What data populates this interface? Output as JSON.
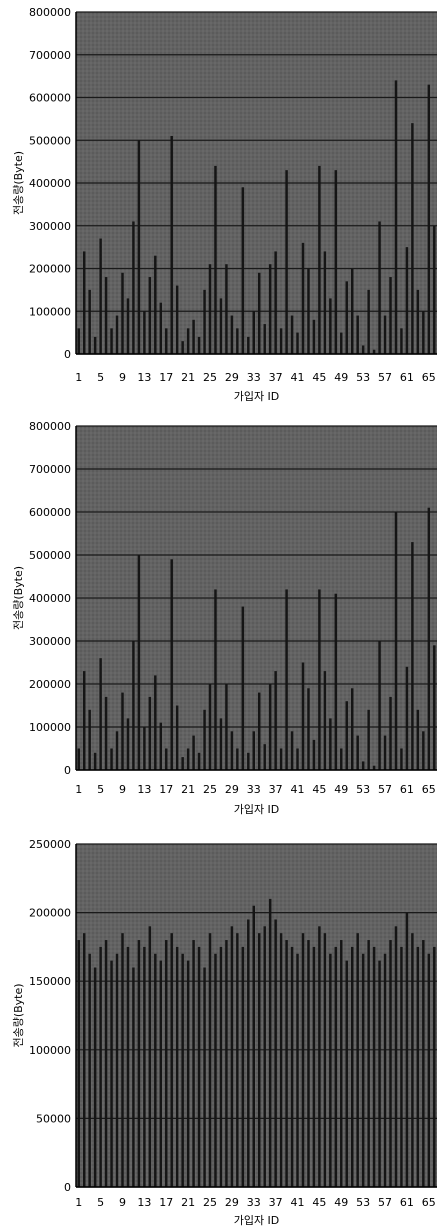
{
  "chart_data": [
    {
      "type": "bar",
      "title": "",
      "xlabel": "가입자 ID",
      "ylabel": "전송량(Byte)",
      "ylim": [
        0,
        800000
      ],
      "yticks": [
        0,
        100000,
        200000,
        300000,
        400000,
        500000,
        600000,
        700000,
        800000
      ],
      "xticks": [
        1,
        5,
        9,
        13,
        17,
        21,
        25,
        29,
        33,
        37,
        41,
        45,
        49,
        53,
        57,
        61,
        65
      ],
      "grid": true,
      "x": [
        1,
        2,
        3,
        4,
        5,
        6,
        7,
        8,
        9,
        10,
        11,
        12,
        13,
        14,
        15,
        16,
        17,
        18,
        19,
        20,
        21,
        22,
        23,
        24,
        25,
        26,
        27,
        28,
        29,
        30,
        31,
        32,
        33,
        34,
        35,
        36,
        37,
        38,
        39,
        40,
        41,
        42,
        43,
        44,
        45,
        46,
        47,
        48,
        49,
        50,
        51,
        52,
        53,
        54,
        55,
        56,
        57,
        58,
        59,
        60,
        61,
        62,
        63,
        64,
        65,
        66
      ],
      "values": [
        60000,
        240000,
        150000,
        40000,
        270000,
        180000,
        60000,
        90000,
        190000,
        130000,
        310000,
        500000,
        100000,
        180000,
        230000,
        120000,
        60000,
        510000,
        160000,
        30000,
        60000,
        80000,
        40000,
        150000,
        210000,
        440000,
        130000,
        210000,
        90000,
        60000,
        390000,
        40000,
        100000,
        190000,
        70000,
        210000,
        240000,
        60000,
        430000,
        90000,
        50000,
        260000,
        200000,
        80000,
        440000,
        240000,
        130000,
        430000,
        50000,
        170000,
        200000,
        90000,
        20000,
        150000,
        10000,
        310000,
        90000,
        180000,
        640000,
        60000,
        250000,
        540000,
        150000,
        100000,
        630000,
        300000
      ]
    },
    {
      "type": "bar",
      "title": "",
      "xlabel": "가입자 ID",
      "ylabel": "전송량(Byte)",
      "ylim": [
        0,
        800000
      ],
      "yticks": [
        0,
        100000,
        200000,
        300000,
        400000,
        500000,
        600000,
        700000,
        800000
      ],
      "xticks": [
        1,
        5,
        9,
        13,
        17,
        21,
        25,
        29,
        33,
        37,
        41,
        45,
        49,
        53,
        57,
        61,
        65
      ],
      "grid": true,
      "x": [
        1,
        2,
        3,
        4,
        5,
        6,
        7,
        8,
        9,
        10,
        11,
        12,
        13,
        14,
        15,
        16,
        17,
        18,
        19,
        20,
        21,
        22,
        23,
        24,
        25,
        26,
        27,
        28,
        29,
        30,
        31,
        32,
        33,
        34,
        35,
        36,
        37,
        38,
        39,
        40,
        41,
        42,
        43,
        44,
        45,
        46,
        47,
        48,
        49,
        50,
        51,
        52,
        53,
        54,
        55,
        56,
        57,
        58,
        59,
        60,
        61,
        62,
        63,
        64,
        65,
        66
      ],
      "values": [
        50000,
        230000,
        140000,
        40000,
        260000,
        170000,
        50000,
        90000,
        180000,
        120000,
        300000,
        500000,
        100000,
        170000,
        220000,
        110000,
        50000,
        490000,
        150000,
        30000,
        50000,
        80000,
        40000,
        140000,
        200000,
        420000,
        120000,
        200000,
        90000,
        50000,
        380000,
        40000,
        90000,
        180000,
        60000,
        200000,
        230000,
        50000,
        420000,
        90000,
        50000,
        250000,
        190000,
        70000,
        420000,
        230000,
        120000,
        410000,
        50000,
        160000,
        190000,
        80000,
        20000,
        140000,
        10000,
        300000,
        80000,
        170000,
        600000,
        50000,
        240000,
        530000,
        140000,
        90000,
        610000,
        290000
      ]
    },
    {
      "type": "bar",
      "title": "",
      "xlabel": "가입자 ID",
      "ylabel": "전송량(Byte)",
      "ylim": [
        0,
        250000
      ],
      "yticks": [
        0,
        50000,
        100000,
        150000,
        200000,
        250000
      ],
      "xticks": [
        1,
        5,
        9,
        13,
        17,
        21,
        25,
        29,
        33,
        37,
        41,
        45,
        49,
        53,
        57,
        61,
        65
      ],
      "grid": true,
      "x": [
        1,
        2,
        3,
        4,
        5,
        6,
        7,
        8,
        9,
        10,
        11,
        12,
        13,
        14,
        15,
        16,
        17,
        18,
        19,
        20,
        21,
        22,
        23,
        24,
        25,
        26,
        27,
        28,
        29,
        30,
        31,
        32,
        33,
        34,
        35,
        36,
        37,
        38,
        39,
        40,
        41,
        42,
        43,
        44,
        45,
        46,
        47,
        48,
        49,
        50,
        51,
        52,
        53,
        54,
        55,
        56,
        57,
        58,
        59,
        60,
        61,
        62,
        63,
        64,
        65,
        66
      ],
      "values": [
        180000,
        185000,
        170000,
        160000,
        175000,
        180000,
        165000,
        170000,
        185000,
        175000,
        160000,
        180000,
        175000,
        190000,
        170000,
        165000,
        180000,
        185000,
        175000,
        170000,
        165000,
        180000,
        175000,
        160000,
        185000,
        170000,
        175000,
        180000,
        190000,
        185000,
        175000,
        195000,
        205000,
        185000,
        190000,
        210000,
        195000,
        185000,
        180000,
        175000,
        170000,
        185000,
        180000,
        175000,
        190000,
        185000,
        170000,
        175000,
        180000,
        165000,
        175000,
        185000,
        170000,
        180000,
        175000,
        165000,
        170000,
        180000,
        190000,
        175000,
        200000,
        185000,
        175000,
        180000,
        170000,
        175000
      ]
    }
  ]
}
